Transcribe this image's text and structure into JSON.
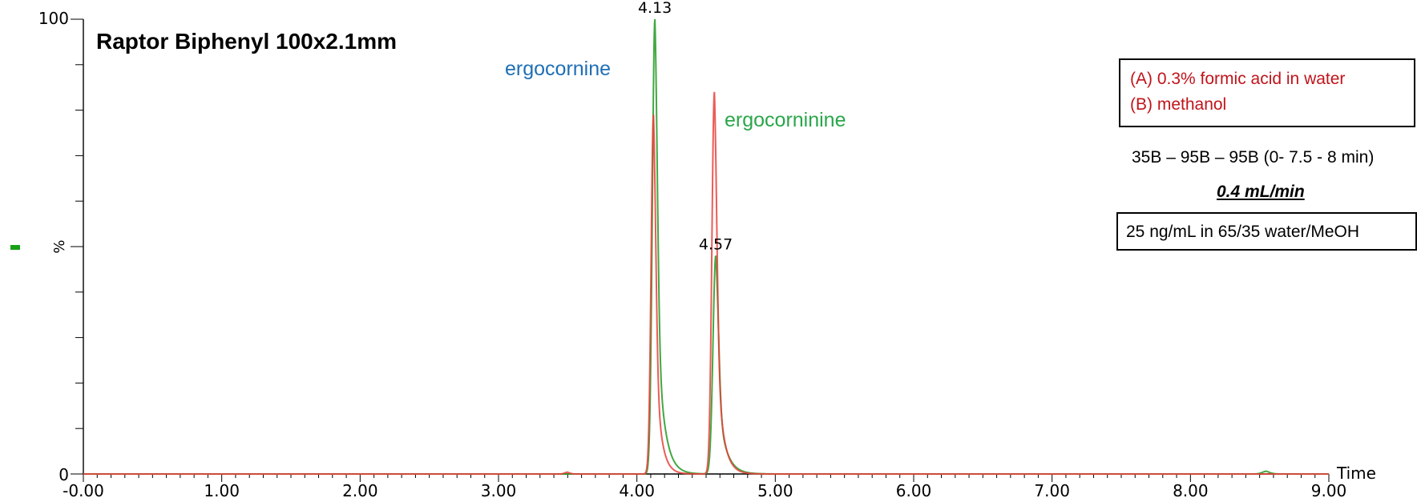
{
  "chart_data": {
    "type": "line",
    "title": "Raptor Biphenyl 100x2.1mm",
    "xlabel": "Time",
    "ylabel": "%",
    "xlim": [
      0,
      9
    ],
    "ylim": [
      0,
      100
    ],
    "x_ticks": [
      "-0.00",
      "1.00",
      "2.00",
      "3.00",
      "4.00",
      "5.00",
      "6.00",
      "7.00",
      "8.00",
      "9.00"
    ],
    "y_ticks": [
      "0",
      "100"
    ],
    "grid": false,
    "series": [
      {
        "color": "#2e9e2e",
        "peaks": [
          {
            "rt": 4.13,
            "height": 100,
            "sigma": 0.018,
            "tail": 0.05
          },
          {
            "rt": 4.57,
            "height": 48,
            "sigma": 0.02,
            "tail": 0.055
          },
          {
            "rt": 8.55,
            "height": 0.6,
            "sigma": 0.03,
            "tail": 0.02
          }
        ]
      },
      {
        "color": "#e8403a",
        "peaks": [
          {
            "rt": 4.12,
            "height": 79,
            "sigma": 0.017,
            "tail": 0.04
          },
          {
            "rt": 4.56,
            "height": 84,
            "sigma": 0.018,
            "tail": 0.045
          },
          {
            "rt": 3.5,
            "height": 0.4,
            "sigma": 0.02,
            "tail": 0.01
          }
        ]
      }
    ],
    "peak_labels": [
      {
        "x": 4.13,
        "y": 100,
        "text": "4.13"
      },
      {
        "x": 4.57,
        "y": 48,
        "text": "4.57"
      }
    ],
    "annotations": {
      "compound_1": {
        "text": "ergocornine",
        "color": "#1f6fb5"
      },
      "compound_2": {
        "text": "ergocorninine",
        "color": "#2aa64a"
      }
    }
  },
  "mobile_phase": {
    "line_a": "(A) 0.3% formic acid in water",
    "line_b": "(B) methanol",
    "color": "#c0141b"
  },
  "gradient_text": "35B – 95B – 95B (0- 7.5 - 8 min)",
  "flow_rate": "0.4 mL/min",
  "sample_text": "25 ng/mL in 65/35 water/MeOH"
}
